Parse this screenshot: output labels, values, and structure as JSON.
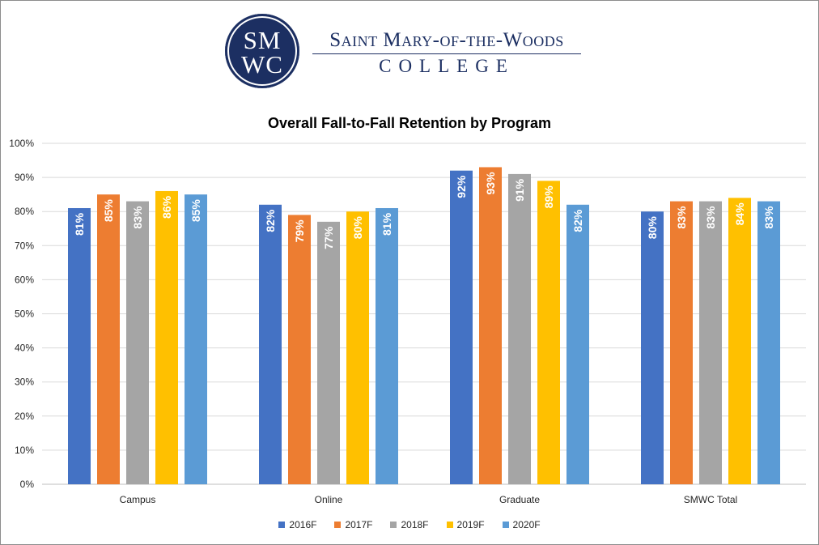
{
  "logo": {
    "seal_line1": "SM",
    "seal_line2": "WC",
    "name": "Saint Mary-of-the-Woods",
    "subtitle": "COLLEGE"
  },
  "chart_data": {
    "type": "bar",
    "title": "Overall Fall-to-Fall Retention by Program",
    "categories": [
      "Campus",
      "Online",
      "Graduate",
      "SMWC Total"
    ],
    "series": [
      {
        "name": "2016F",
        "color": "#4472c4",
        "values": [
          81,
          82,
          92,
          80
        ],
        "labels": [
          "81%",
          "82%",
          "92%",
          "80%"
        ]
      },
      {
        "name": "2017F",
        "color": "#ed7d31",
        "values": [
          85,
          79,
          93,
          83
        ],
        "labels": [
          "85%",
          "79%",
          "93%",
          "83%"
        ]
      },
      {
        "name": "2018F",
        "color": "#a5a5a5",
        "values": [
          83,
          77,
          91,
          83
        ],
        "labels": [
          "83%",
          "77%",
          "91%",
          "83%"
        ]
      },
      {
        "name": "2019F",
        "color": "#ffc000",
        "values": [
          86,
          80,
          89,
          84
        ],
        "labels": [
          "86%",
          "80%",
          "89%",
          "84%"
        ]
      },
      {
        "name": "2020F",
        "color": "#5b9bd5",
        "values": [
          85,
          81,
          82,
          83
        ],
        "labels": [
          "85%",
          "81%",
          "82%",
          "83%"
        ]
      }
    ],
    "ylim": [
      0,
      100
    ],
    "yticks": [
      "0%",
      "10%",
      "20%",
      "30%",
      "40%",
      "50%",
      "60%",
      "70%",
      "80%",
      "90%",
      "100%"
    ],
    "grid": true,
    "legend_position": "bottom"
  }
}
